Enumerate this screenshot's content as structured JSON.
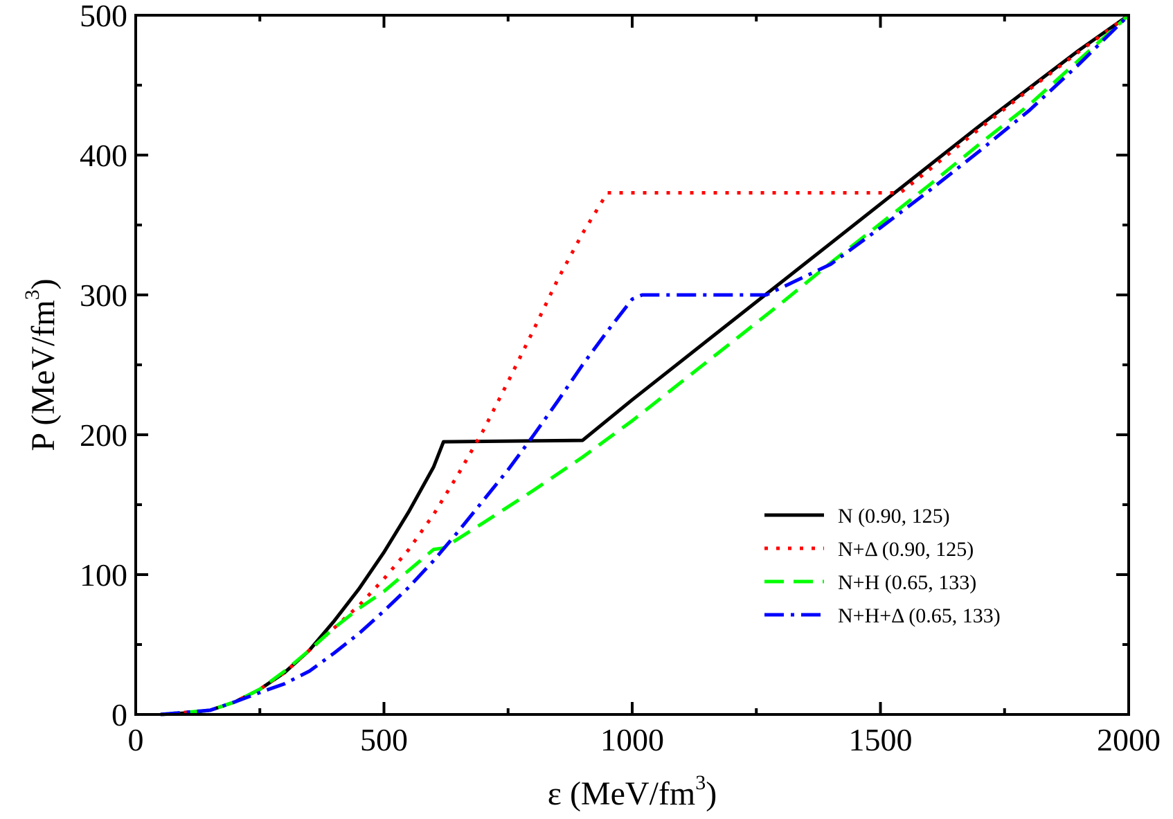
{
  "chart_data": {
    "type": "line",
    "title": "",
    "xlabel": "ε (MeV/fm³)",
    "xlabel_parts": {
      "main": "ε (MeV/fm",
      "sup": "3",
      "close": ")"
    },
    "ylabel": "P (MeV/fm³)",
    "ylabel_parts": {
      "main": "P (MeV/fm",
      "sup": "3",
      "close": ")"
    },
    "xlim": [
      0,
      2000
    ],
    "ylim": [
      0,
      500
    ],
    "xticks": [
      0,
      500,
      1000,
      1500,
      2000
    ],
    "yticks": [
      0,
      100,
      200,
      300,
      400,
      500
    ],
    "xtick_labels": [
      "0",
      "500",
      "1000",
      "1500",
      "2000"
    ],
    "ytick_labels": [
      "0",
      "100",
      "200",
      "300",
      "400",
      "500"
    ],
    "grid": false,
    "legend_position": "lower-right",
    "series": [
      {
        "name": "N (0.90, 125)",
        "color": "#000000",
        "style": "solid",
        "x": [
          50,
          100,
          150,
          200,
          250,
          300,
          350,
          400,
          450,
          500,
          550,
          600,
          620,
          900,
          1000,
          1100,
          1200,
          1300,
          1400,
          1500,
          1600,
          1700,
          1800,
          1900,
          2000
        ],
        "y": [
          0,
          1,
          3,
          9,
          18,
          30,
          46,
          67,
          90,
          116,
          145,
          177,
          195,
          196,
          225,
          253,
          281,
          309,
          337,
          365,
          393,
          421,
          448,
          475,
          500
        ]
      },
      {
        "name": "N+Δ (0.90, 125)",
        "color": "#ff0000",
        "style": "dotted",
        "x": [
          50,
          150,
          200,
          250,
          300,
          350,
          400,
          450,
          500,
          550,
          600,
          650,
          700,
          750,
          800,
          850,
          900,
          950,
          1000,
          1200,
          1400,
          1540,
          1600,
          1700,
          1800,
          1900,
          2000
        ],
        "y": [
          0,
          3,
          9,
          18,
          30,
          46,
          62,
          78,
          97,
          118,
          143,
          172,
          203,
          238,
          274,
          311,
          344,
          373,
          373,
          373,
          373,
          373,
          390,
          419,
          447,
          474,
          500
        ]
      },
      {
        "name": "N+H (0.65, 133)",
        "color": "#00ff00",
        "style": "dashed",
        "x": [
          50,
          150,
          200,
          250,
          300,
          350,
          400,
          450,
          500,
          550,
          600,
          620,
          700,
          800,
          900,
          1000,
          1100,
          1200,
          1300,
          1400,
          1500,
          1600,
          1700,
          1800,
          1900,
          2000
        ],
        "y": [
          0,
          3,
          9,
          18,
          31,
          46,
          62,
          76,
          88,
          103,
          118,
          119,
          137,
          160,
          184,
          210,
          238,
          266,
          294,
          323,
          351,
          379,
          408,
          436,
          468,
          500
        ]
      },
      {
        "name": "N+H+Δ (0.65, 133)",
        "color": "#0000ff",
        "style": "dashdot",
        "x": [
          50,
          150,
          200,
          260,
          300,
          350,
          400,
          450,
          500,
          550,
          600,
          650,
          700,
          750,
          800,
          850,
          900,
          950,
          1000,
          1020,
          1130,
          1270,
          1400,
          1500,
          1600,
          1700,
          1800,
          1900,
          2000
        ],
        "y": [
          0,
          3,
          9,
          17,
          22,
          31,
          44,
          58,
          74,
          91,
          110,
          131,
          153,
          175,
          199,
          224,
          250,
          274,
          297,
          300,
          300,
          300,
          322,
          348,
          375,
          403,
          432,
          465,
          500
        ]
      }
    ]
  }
}
